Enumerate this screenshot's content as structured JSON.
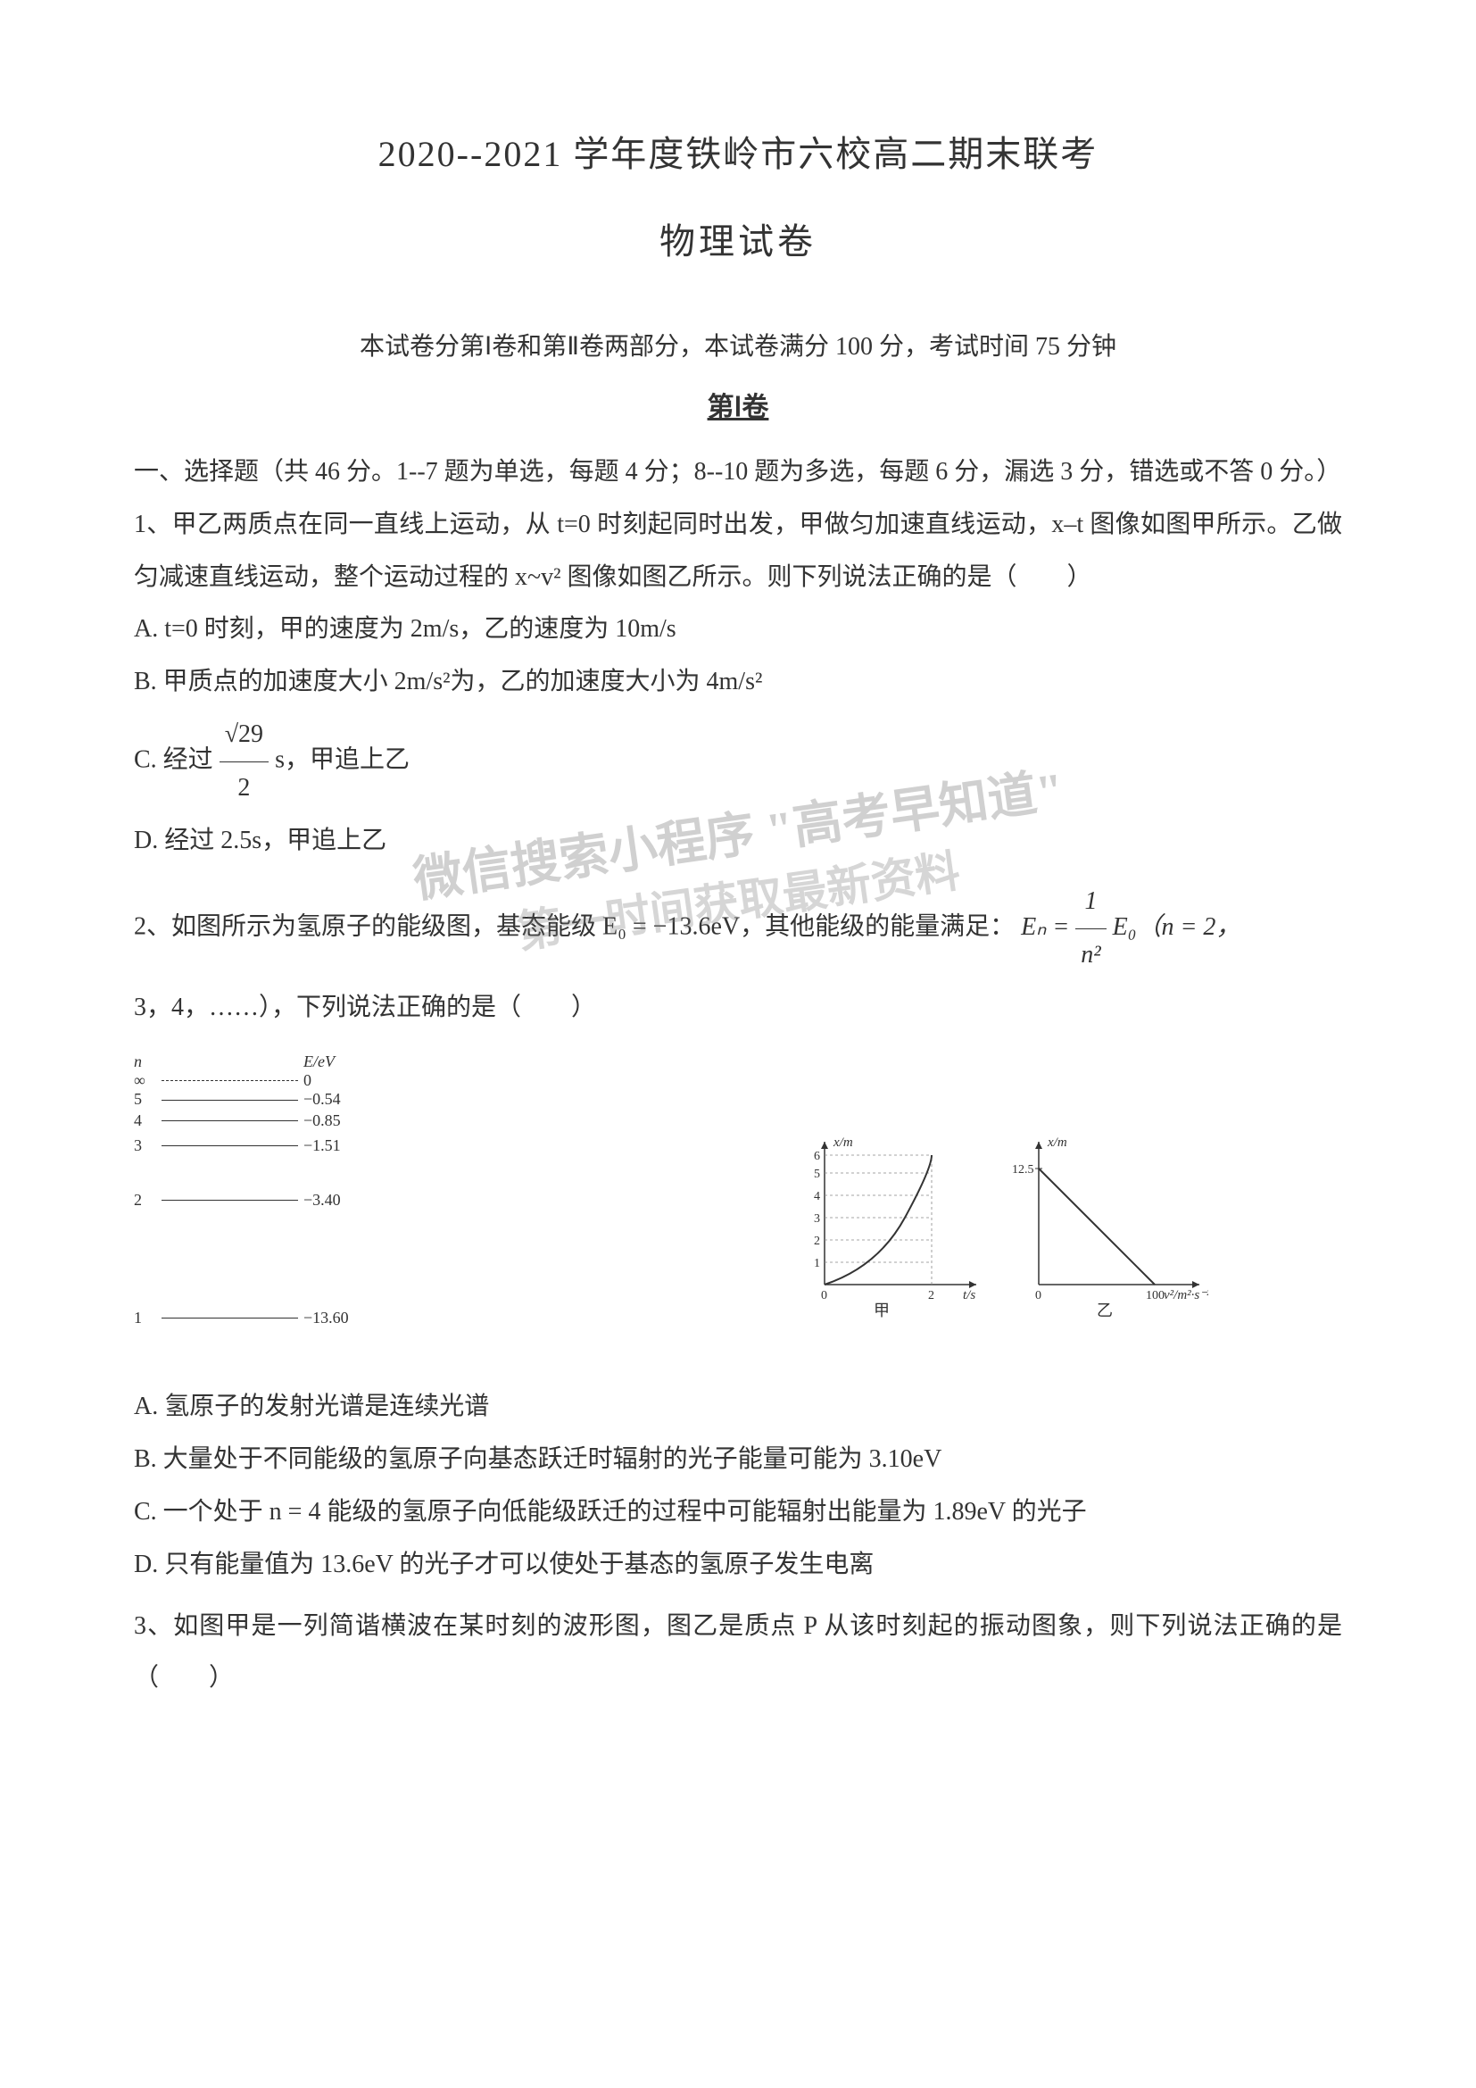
{
  "title_main": "2020--2021 学年度铁岭市六校高二期末联考",
  "title_sub": "物理试卷",
  "info_line": "本试卷分第Ⅰ卷和第Ⅱ卷两部分，本试卷满分 100 分，考试时间 75 分钟",
  "section1_header": "第Ⅰ卷",
  "section1_intro": "一、选择题（共 46 分。1--7 题为单选，每题 4 分；8--10 题为多选，每题 6 分，漏选 3 分，错选或不答 0 分。）",
  "q1": {
    "stem": "1、甲乙两质点在同一直线上运动，从 t=0 时刻起同时出发，甲做匀加速直线运动，x–t 图像如图甲所示。乙做匀减速直线运动，整个运动过程的 x~v² 图像如图乙所示。则下列说法正确的是（　　）",
    "A": "A.  t=0 时刻，甲的速度为 2m/s，乙的速度为 10m/s",
    "B": "B.  甲质点的加速度大小 2m/s²为，乙的加速度大小为 4m/s²",
    "C_prefix": "C.  经过 ",
    "C_suffix": " s，甲追上乙",
    "C_frac_num": "√29",
    "C_frac_den": "2",
    "D": "D.  经过 2.5s，甲追上乙",
    "chart1": {
      "type": "line",
      "xlabel": "t/s",
      "ylabel": "x/m",
      "xlim": [
        0,
        2.5
      ],
      "ylim": [
        0,
        7
      ],
      "yticks": [
        0,
        1,
        2,
        3,
        4,
        5,
        6
      ],
      "xtick_at": 2,
      "curve_color": "#333333",
      "grid_color": "#888888",
      "bg": "#ffffff",
      "label": "甲"
    },
    "chart2": {
      "type": "line",
      "xlabel": "v²/m²·s⁻²",
      "ylabel": "x/m",
      "y_intercept": 12.5,
      "x_intercept": 100,
      "line_color": "#333333",
      "bg": "#ffffff",
      "label": "乙"
    }
  },
  "q2": {
    "stem_a": "2、如图所示为氢原子的能级图，基态能级 E₀ = −13.6eV，其他能级的能量满足：",
    "formula_prefix": "Eₙ = ",
    "formula_frac_num": "1",
    "formula_frac_den": "n²",
    "formula_suffix": " E₀（n = 2，",
    "stem_b": "3，4，……），下列说法正确的是（　　）",
    "energy": {
      "header_left": "n",
      "header_right": "E/eV",
      "levels": [
        {
          "n": "∞",
          "e": "0",
          "dashed": true,
          "gap": 0
        },
        {
          "n": "5",
          "e": "−0.54",
          "dashed": false,
          "gap": 0
        },
        {
          "n": "4",
          "e": "−0.85",
          "dashed": false,
          "gap": 2
        },
        {
          "n": "3",
          "e": "−1.51",
          "dashed": false,
          "gap": 6
        },
        {
          "n": "2",
          "e": "−3.40",
          "dashed": false,
          "gap": 40
        },
        {
          "n": "1",
          "e": "−13.60",
          "dashed": false,
          "gap": 110
        }
      ]
    },
    "A": "A.  氢原子的发射光谱是连续光谱",
    "B": "B.  大量处于不同能级的氢原子向基态跃迁时辐射的光子能量可能为 3.10eV",
    "C": "C.  一个处于 n = 4 能级的氢原子向低能级跃迁的过程中可能辐射出能量为 1.89eV 的光子",
    "D": "D.  只有能量值为 13.6eV 的光子才可以使处于基态的氢原子发生电离"
  },
  "q3": {
    "stem": "3、如图甲是一列简谐横波在某时刻的波形图，图乙是质点 P 从该时刻起的振动图象，则下列说法正确的是（　　）"
  },
  "watermark_line1": "微信搜索小程序  \"高考早知道\"",
  "watermark_line2": "第一时间获取最新资料",
  "colors": {
    "text": "#333333",
    "bg": "#ffffff",
    "watermark": "rgba(120,120,120,0.35)"
  },
  "typography": {
    "title_fontsize_pt": 30,
    "body_fontsize_pt": 21,
    "line_height": 2.1,
    "font_family": "SimSun"
  }
}
